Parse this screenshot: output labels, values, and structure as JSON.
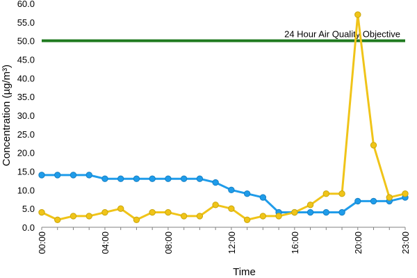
{
  "chart_data": {
    "type": "line",
    "xlabel": "Time",
    "ylabel": "Concentration (µg/m³)",
    "ylim": [
      0,
      60
    ],
    "yticks": [
      "0.0",
      "5.0",
      "10.0",
      "15.0",
      "20.0",
      "25.0",
      "30.0",
      "35.0",
      "40.0",
      "45.0",
      "50.0",
      "55.0",
      "60.0"
    ],
    "x": [
      0,
      1,
      2,
      3,
      4,
      5,
      6,
      7,
      8,
      9,
      10,
      11,
      12,
      13,
      14,
      15,
      16,
      17,
      18,
      19,
      20,
      21,
      22,
      23
    ],
    "xticks": [
      {
        "hour": 0,
        "label": "00:00"
      },
      {
        "hour": 4,
        "label": "04:00"
      },
      {
        "hour": 8,
        "label": "08:00"
      },
      {
        "hour": 12,
        "label": "12:00"
      },
      {
        "hour": 16,
        "label": "16:00"
      },
      {
        "hour": 20,
        "label": "20:00"
      },
      {
        "hour": 23,
        "label": "23:00"
      }
    ],
    "grid": false,
    "series": [
      {
        "color": "#1f9cea",
        "values": [
          14,
          14,
          14,
          14,
          13,
          13,
          13,
          13,
          13,
          13,
          13,
          12,
          10,
          9,
          8,
          4,
          4,
          4,
          4,
          4,
          7,
          7,
          7,
          8
        ]
      },
      {
        "color": "#f0c419",
        "values": [
          4,
          2,
          3,
          3,
          4,
          5,
          2,
          4,
          4,
          3,
          3,
          6,
          5,
          2,
          3,
          3,
          4,
          6,
          9,
          9,
          57,
          22,
          8,
          9
        ]
      }
    ],
    "reference_line": {
      "value": 50,
      "label": "24 Hour Air Quality Objective",
      "color": "#1f7a1f"
    }
  }
}
